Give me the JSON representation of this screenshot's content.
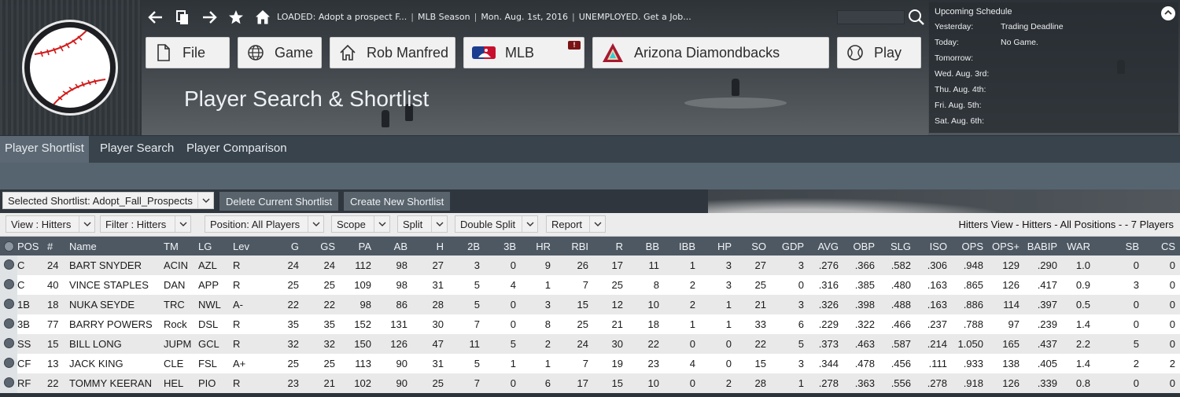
{
  "app": {
    "status": {
      "loaded": "LOADED: Adopt a prospect F...",
      "season": "MLB Season",
      "date": "Mon. Aug. 1st, 2016",
      "job": "UNEMPLOYED. Get a Job..."
    },
    "nav_icons": [
      "back-arrow-icon",
      "copy-icon",
      "forward-arrow-icon",
      "star-icon",
      "home-icon"
    ],
    "top_buttons": [
      {
        "label": "File",
        "icon": "file-icon"
      },
      {
        "label": "Game",
        "icon": "globe-icon"
      },
      {
        "label": "Rob Manfred",
        "icon": "house-icon"
      },
      {
        "label": "MLB",
        "icon": "mlb-logo-icon",
        "badge": "!"
      },
      {
        "label": "Arizona Diamondbacks",
        "icon": "diamondbacks-logo-icon"
      },
      {
        "label": "Play",
        "icon": "baseball-icon"
      }
    ],
    "page_title": "Player Search & Shortlist"
  },
  "schedule": {
    "title": "Upcoming Schedule",
    "rows": [
      {
        "day": "Yesterday:",
        "value": "Trading Deadline"
      },
      {
        "day": "Today:",
        "value": "No Game."
      },
      {
        "day": "Tomorrow:",
        "value": ""
      },
      {
        "day": "Wed. Aug. 3rd:",
        "value": ""
      },
      {
        "day": "Thu. Aug. 4th:",
        "value": ""
      },
      {
        "day": "Fri. Aug. 5th:",
        "value": ""
      },
      {
        "day": "Sat. Aug. 6th:",
        "value": ""
      }
    ]
  },
  "tabs": [
    {
      "label": "Player Shortlist",
      "active": true
    },
    {
      "label": "Player Search",
      "active": false
    },
    {
      "label": "Player Comparison",
      "active": false
    }
  ],
  "toolbar": {
    "shortlist_select": "Selected Shortlist: Adopt_Fall_Prospects",
    "delete_label": "Delete Current Shortlist",
    "create_label": "Create New Shortlist"
  },
  "filters": {
    "view": "View : Hitters",
    "filter": "Filter : Hitters",
    "position": "Position: All Players",
    "scope": "Scope",
    "split": "Split",
    "double_split": "Double Split",
    "report": "Report",
    "summary": "Hitters View - Hitters - All Positions -  - 7 Players"
  },
  "table": {
    "columns": [
      "POS",
      "#",
      "Name",
      "TM",
      "LG",
      "Lev",
      "G",
      "GS",
      "PA",
      "AB",
      "H",
      "2B",
      "3B",
      "HR",
      "RBI",
      "R",
      "BB",
      "IBB",
      "HP",
      "SO",
      "GDP",
      "AVG",
      "OBP",
      "SLG",
      "ISO",
      "OPS",
      "OPS+",
      "BABIP",
      "WAR",
      "SB",
      "CS"
    ],
    "rows": [
      [
        "C",
        "24",
        "BART SNYDER",
        "ACIN",
        "AZL",
        "R",
        "24",
        "24",
        "112",
        "98",
        "27",
        "3",
        "0",
        "9",
        "26",
        "17",
        "11",
        "1",
        "3",
        "27",
        "3",
        ".276",
        ".366",
        ".582",
        ".306",
        ".948",
        "129",
        ".290",
        "1.0",
        "0",
        "0"
      ],
      [
        "C",
        "40",
        "VINCE STAPLES",
        "DAN",
        "APP",
        "R",
        "25",
        "25",
        "109",
        "98",
        "31",
        "5",
        "4",
        "1",
        "7",
        "25",
        "8",
        "2",
        "3",
        "25",
        "0",
        ".316",
        ".385",
        ".480",
        ".163",
        ".865",
        "126",
        ".417",
        "0.9",
        "3",
        "0"
      ],
      [
        "1B",
        "18",
        "NUKA SEYDE",
        "TRC",
        "NWL",
        "A-",
        "22",
        "22",
        "98",
        "86",
        "28",
        "5",
        "0",
        "3",
        "15",
        "12",
        "10",
        "2",
        "1",
        "21",
        "3",
        ".326",
        ".398",
        ".488",
        ".163",
        ".886",
        "114",
        ".397",
        "0.5",
        "0",
        "0"
      ],
      [
        "3B",
        "77",
        "BARRY POWERS",
        "Rock",
        "DSL",
        "R",
        "35",
        "35",
        "152",
        "131",
        "30",
        "7",
        "0",
        "8",
        "25",
        "21",
        "18",
        "1",
        "1",
        "33",
        "6",
        ".229",
        ".322",
        ".466",
        ".237",
        ".788",
        "97",
        ".239",
        "1.4",
        "0",
        "0"
      ],
      [
        "SS",
        "15",
        "BILL LONG",
        "JUPM",
        "GCL",
        "R",
        "32",
        "32",
        "150",
        "126",
        "47",
        "11",
        "5",
        "2",
        "24",
        "30",
        "22",
        "0",
        "0",
        "22",
        "5",
        ".373",
        ".463",
        ".587",
        ".214",
        "1.050",
        "165",
        ".437",
        "2.2",
        "5",
        "0"
      ],
      [
        "CF",
        "13",
        "JACK KING",
        "CLE",
        "FSL",
        "A+",
        "25",
        "25",
        "113",
        "90",
        "31",
        "5",
        "1",
        "1",
        "7",
        "19",
        "23",
        "4",
        "0",
        "15",
        "3",
        ".344",
        ".478",
        ".456",
        ".111",
        ".933",
        "138",
        ".405",
        "1.4",
        "2",
        "2"
      ],
      [
        "RF",
        "22",
        "TOMMY KEERAN",
        "HEL",
        "PIO",
        "R",
        "23",
        "21",
        "102",
        "90",
        "25",
        "7",
        "0",
        "6",
        "17",
        "15",
        "10",
        "0",
        "2",
        "28",
        "1",
        ".278",
        ".363",
        ".556",
        ".278",
        ".918",
        "126",
        ".339",
        "0.8",
        "0",
        "0"
      ]
    ]
  }
}
